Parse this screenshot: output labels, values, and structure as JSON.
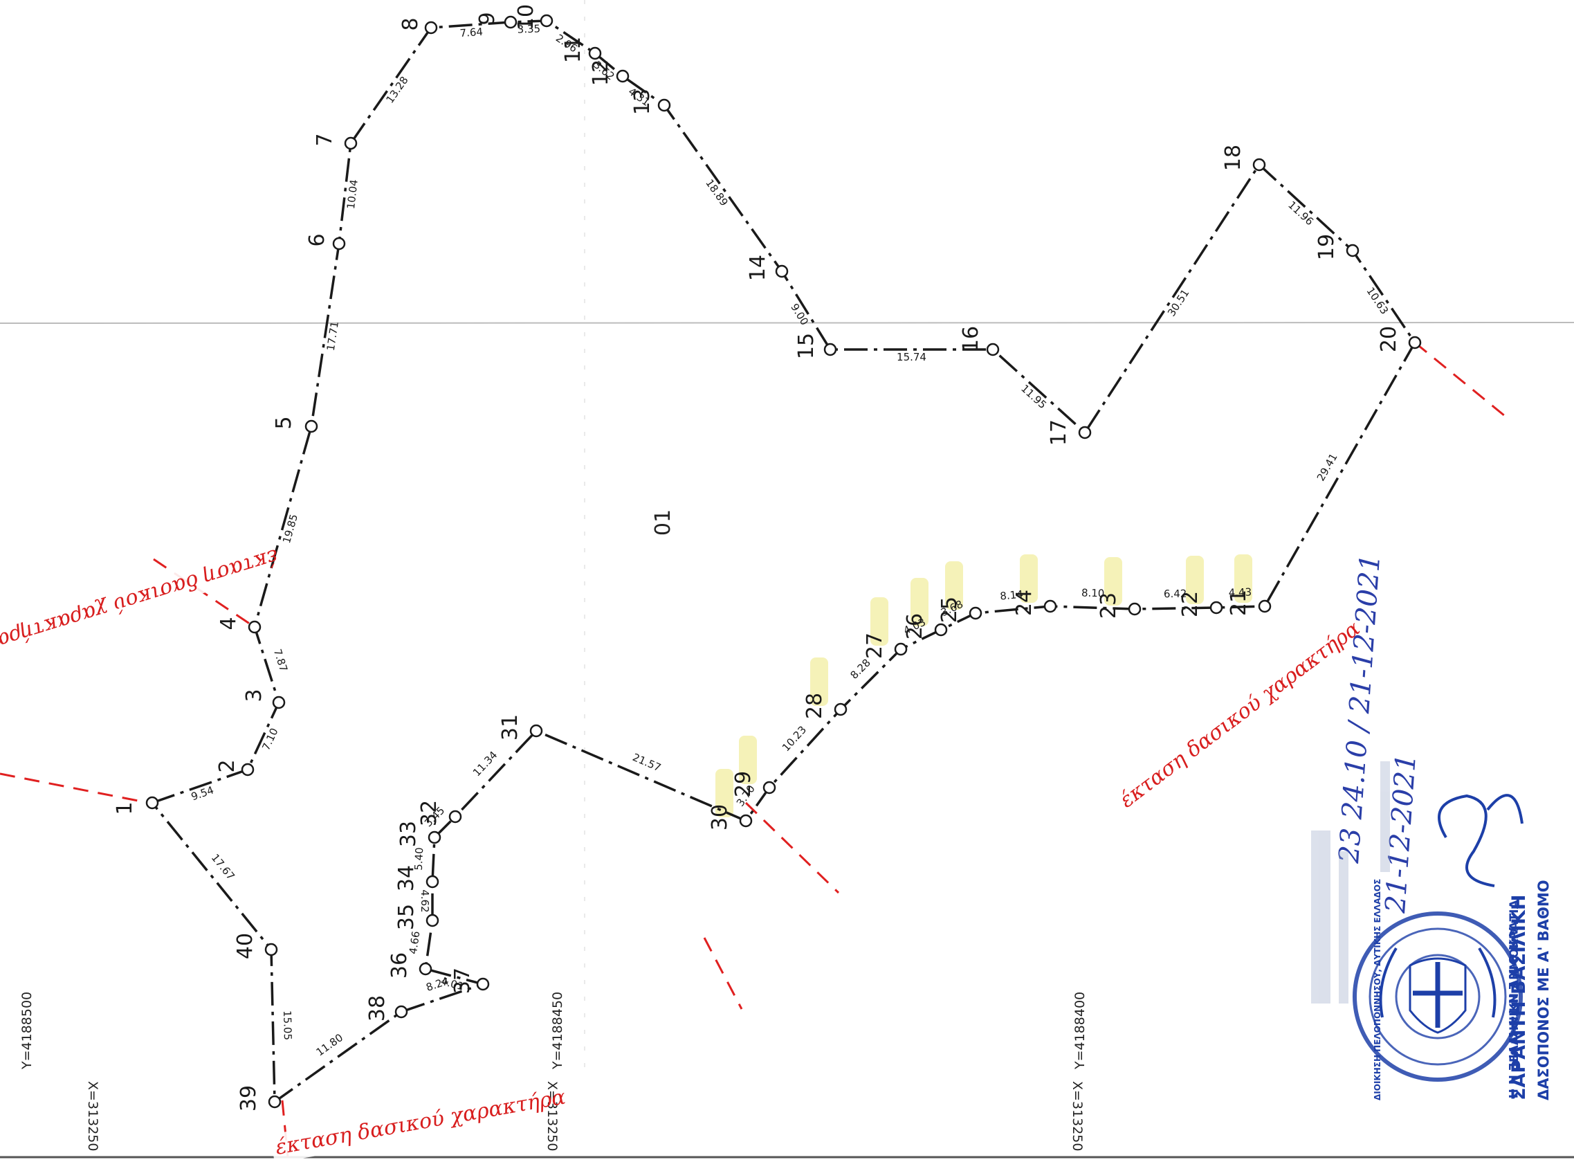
{
  "parcel": {
    "label": "01",
    "points": [
      {
        "id": "1",
        "label": "1"
      },
      {
        "id": "2",
        "label": "2"
      },
      {
        "id": "3",
        "label": "3"
      },
      {
        "id": "4",
        "label": "4"
      },
      {
        "id": "5",
        "label": "5"
      },
      {
        "id": "6",
        "label": "6"
      },
      {
        "id": "7",
        "label": "7"
      },
      {
        "id": "8",
        "label": "8"
      },
      {
        "id": "9",
        "label": "9"
      },
      {
        "id": "10",
        "label": "10"
      },
      {
        "id": "11",
        "label": "11"
      },
      {
        "id": "12",
        "label": "12"
      },
      {
        "id": "13",
        "label": "13"
      },
      {
        "id": "14",
        "label": "14"
      },
      {
        "id": "15",
        "label": "15"
      },
      {
        "id": "16",
        "label": "16"
      },
      {
        "id": "17",
        "label": "17"
      },
      {
        "id": "18",
        "label": "18"
      },
      {
        "id": "19",
        "label": "19"
      },
      {
        "id": "20",
        "label": "20"
      },
      {
        "id": "21",
        "label": "21"
      },
      {
        "id": "22",
        "label": "22"
      },
      {
        "id": "23",
        "label": "23"
      },
      {
        "id": "24",
        "label": "24"
      },
      {
        "id": "25",
        "label": "25"
      },
      {
        "id": "26",
        "label": "26"
      },
      {
        "id": "27",
        "label": "27"
      },
      {
        "id": "28",
        "label": "28"
      },
      {
        "id": "29",
        "label": "29"
      },
      {
        "id": "30",
        "label": "30"
      },
      {
        "id": "31",
        "label": "31"
      },
      {
        "id": "32",
        "label": "32"
      },
      {
        "id": "33",
        "label": "33"
      },
      {
        "id": "34",
        "label": "34"
      },
      {
        "id": "35",
        "label": "35"
      },
      {
        "id": "36",
        "label": "36"
      },
      {
        "id": "37",
        "label": "37"
      },
      {
        "id": "38",
        "label": "38"
      },
      {
        "id": "39",
        "label": "39"
      },
      {
        "id": "40",
        "label": "40"
      }
    ],
    "segments": [
      {
        "from": "1",
        "to": "2",
        "length": "9.54"
      },
      {
        "from": "2",
        "to": "3",
        "length": "7.10"
      },
      {
        "from": "3",
        "to": "4",
        "length": "7.87"
      },
      {
        "from": "4",
        "to": "5",
        "length": "19.85"
      },
      {
        "from": "5",
        "to": "6",
        "length": "17.71"
      },
      {
        "from": "6",
        "to": "7",
        "length": "10.04"
      },
      {
        "from": "7",
        "to": "8",
        "length": "13.28"
      },
      {
        "from": "8",
        "to": "9",
        "length": "7.64"
      },
      {
        "from": "9",
        "to": "10",
        "length": "3.35"
      },
      {
        "from": "10",
        "to": "11",
        "length": "2.96"
      },
      {
        "from": "11",
        "to": "12",
        "length": "3.62"
      },
      {
        "from": "12",
        "to": "13",
        "length": "4.31"
      },
      {
        "from": "13",
        "to": "14",
        "length": "18.89"
      },
      {
        "from": "14",
        "to": "15",
        "length": "9.00"
      },
      {
        "from": "15",
        "to": "16",
        "length": "15.74"
      },
      {
        "from": "16",
        "to": "17",
        "length": "11.95"
      },
      {
        "from": "17",
        "to": "18",
        "length": "30.51"
      },
      {
        "from": "18",
        "to": "19",
        "length": "11.96"
      },
      {
        "from": "19",
        "to": "20",
        "length": "10.63"
      },
      {
        "from": "20",
        "to": "21",
        "length": "29.41"
      },
      {
        "from": "21",
        "to": "22",
        "length": "4.43"
      },
      {
        "from": "22",
        "to": "23",
        "length": "6.42"
      },
      {
        "from": "23",
        "to": "24",
        "length": "8.10"
      },
      {
        "from": "24",
        "to": "25",
        "length": "8.14"
      },
      {
        "from": "25",
        "to": "26",
        "length": "3.68"
      },
      {
        "from": "26",
        "to": "27",
        "length": "4.03"
      },
      {
        "from": "27",
        "to": "28",
        "length": "8.28"
      },
      {
        "from": "28",
        "to": "29",
        "length": "10.23"
      },
      {
        "from": "29",
        "to": "30",
        "length": "3.70"
      },
      {
        "from": "30",
        "to": "31",
        "length": "21.57"
      },
      {
        "from": "31",
        "to": "32",
        "length": "11.34"
      },
      {
        "from": "32",
        "to": "33",
        "length": "3.45"
      },
      {
        "from": "33",
        "to": "34",
        "length": "5.40"
      },
      {
        "from": "34",
        "to": "35",
        "length": "4.62"
      },
      {
        "from": "35",
        "to": "36",
        "length": "4.66"
      },
      {
        "from": "36",
        "to": "37",
        "length": "4.01"
      },
      {
        "from": "37",
        "to": "38",
        "length": "8.24"
      },
      {
        "from": "38",
        "to": "39",
        "length": "11.80"
      },
      {
        "from": "39",
        "to": "40",
        "length": "15.05"
      },
      {
        "from": "40",
        "to": "1",
        "length": "17.67"
      }
    ]
  },
  "grid": {
    "y_labels": [
      "Y=4188500",
      "Y=4188450",
      "Y=4188400"
    ],
    "x_labels": [
      "X=313250",
      "X=313250",
      "X=313250"
    ]
  },
  "forest_labels": [
    {
      "id": "left",
      "text": "έκταση δασικού χαρακτήρα"
    },
    {
      "id": "bottom",
      "text": "έκταση δασικού χαρακτήρα"
    },
    {
      "id": "right",
      "text": "έκταση δασικού χαρακτήρα"
    }
  ],
  "stamp": {
    "name": "ΣΑΡΑΝΤΗ ΒΑΣΙΛΙΚΗ",
    "title": "ΔΑΣΟΠΟΝΟΣ ΜΕ Α' ΒΑΘΜΟ",
    "ring_top": "Α Π Ο Κ Ε Ν Τ Ρ Ω Μ Ε Ν Η",
    "ring_mid": "ΔΙΟΙΚΗΣΗ ΠΕΛΟΠΟΝΝΗΣΟΥ, ΔΥΤΙΚΗΣ ΕΛΛΑΔΟΣ",
    "ring_bottom": "ΕΛΛΗΝΙΚΗ ΔΗΜΟΚΡΑΤΙΑ",
    "handwritten_1": "23 24.10 / 21-12-2021",
    "handwritten_2": "21-12-2021"
  },
  "colors": {
    "line": "#1a1a1a",
    "red_dash": "#e02020",
    "stamp_blue": "#1d3fa8",
    "highlight": "#f3efa6"
  }
}
